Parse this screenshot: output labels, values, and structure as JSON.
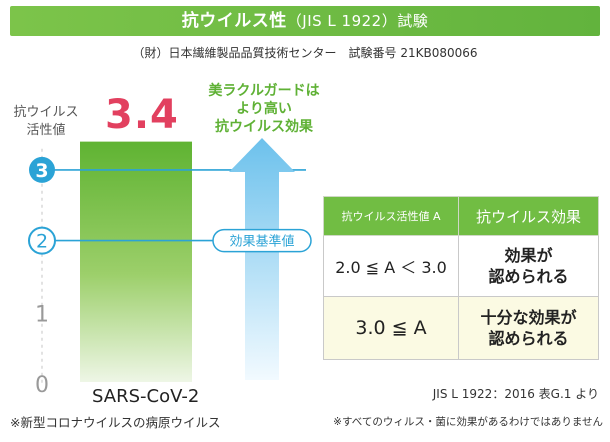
{
  "header": {
    "title_main": "抗ウイルス性",
    "title_sub": "（JIS L 1922）試験",
    "org_line": "（財）日本繊維製品品質技術センター　試験番号 21KB080066"
  },
  "chart_data": {
    "type": "bar",
    "ylabel": "抗ウイルス\n活性値",
    "categories": [
      "SARS-CoV-2"
    ],
    "values": [
      3.4
    ],
    "value_label": "3.4",
    "ylim": [
      0,
      3.4
    ],
    "yticks": [
      "0",
      "1",
      "2",
      "3"
    ],
    "reference_line": {
      "value": 2.0,
      "label": "効果基準値"
    },
    "highlight_line": {
      "value": 3.0
    },
    "arrow_caption": [
      "美ラクルガードは",
      "より高い",
      "抗ウイルス効果"
    ],
    "category_note": "※新型コロナウイルスの病原ウイルス"
  },
  "table": {
    "headers": [
      "抗ウイルス活性値 A",
      "抗ウイルス効果"
    ],
    "rows": [
      {
        "condition": "2.0 ≦ A ＜ 3.0",
        "effect": [
          "効果が",
          "認められる"
        ]
      },
      {
        "condition": "3.0 ≦ A",
        "effect": [
          "十分な効果が",
          "認められる"
        ]
      }
    ],
    "source": "JIS L 1922：2016 表G.1 より"
  },
  "footnote": "※すべてのウィルス・菌に効果があるわけではありません",
  "colors": {
    "title_bg": "#6ab942",
    "bar_green": "#6fbd3f",
    "value_pink": "#e2405f",
    "line_blue": "#2ba3d6",
    "arrow_blue": "#8fd0f0",
    "table_header": "#71bd43",
    "row_highlight": "#fbfae3"
  }
}
